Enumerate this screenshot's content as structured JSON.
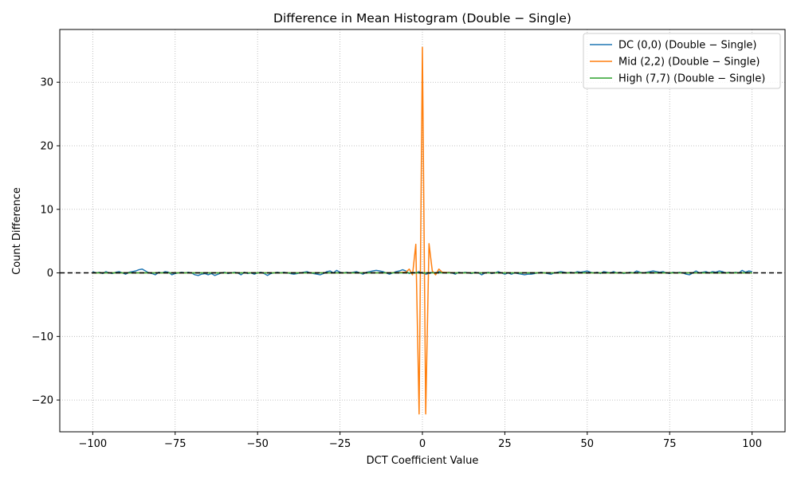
{
  "chart_data": {
    "type": "line",
    "title": "Difference in Mean Histogram (Double − Single)",
    "xlabel": "DCT Coefficient Value",
    "ylabel": "Count Difference",
    "xlim": [
      -110,
      110
    ],
    "ylim": [
      -25,
      38.3
    ],
    "xticks": [
      -100,
      -75,
      -50,
      -25,
      0,
      25,
      50,
      75,
      100
    ],
    "xtick_labels": [
      "−100",
      "−75",
      "−50",
      "−25",
      "0",
      "25",
      "50",
      "75",
      "100"
    ],
    "yticks": [
      -20,
      -10,
      0,
      10,
      20,
      30
    ],
    "ytick_labels": [
      "−20",
      "−10",
      "0",
      "10",
      "20",
      "30"
    ],
    "grid": true,
    "legend_position": "top-right",
    "reference_line": {
      "y": 0,
      "style": "dashed",
      "color": "#000000"
    },
    "series": [
      {
        "name": "DC (0,0) (Double − Single)",
        "color": "#1f77b4",
        "points": [
          [
            -100,
            0.2
          ],
          [
            -99,
            0.0
          ],
          [
            -98,
            0.1
          ],
          [
            -97,
            -0.1
          ],
          [
            -96,
            0.2
          ],
          [
            -95,
            0.0
          ],
          [
            -94,
            -0.1
          ],
          [
            -93,
            0.1
          ],
          [
            -92,
            0.2
          ],
          [
            -91,
            0.0
          ],
          [
            -90,
            -0.2
          ],
          [
            -89,
            0.1
          ],
          [
            -88,
            0.2
          ],
          [
            -87,
            0.3
          ],
          [
            -86,
            0.5
          ],
          [
            -85,
            0.6
          ],
          [
            -84,
            0.3
          ],
          [
            -83,
            0.0
          ],
          [
            -82,
            -0.1
          ],
          [
            -81,
            -0.3
          ],
          [
            -80,
            0.1
          ],
          [
            -79,
            0.0
          ],
          [
            -78,
            0.2
          ],
          [
            -77,
            0.1
          ],
          [
            -76,
            -0.3
          ],
          [
            -75,
            -0.1
          ],
          [
            -74,
            0.0
          ],
          [
            -73,
            0.1
          ],
          [
            -72,
            0.0
          ],
          [
            -71,
            0.1
          ],
          [
            -70,
            0.0
          ],
          [
            -69,
            -0.3
          ],
          [
            -68,
            -0.4
          ],
          [
            -67,
            -0.2
          ],
          [
            -66,
            -0.1
          ],
          [
            -65,
            -0.3
          ],
          [
            -64,
            -0.1
          ],
          [
            -63,
            -0.4
          ],
          [
            -62,
            -0.2
          ],
          [
            -61,
            0.0
          ],
          [
            -60,
            0.1
          ],
          [
            -59,
            -0.1
          ],
          [
            -58,
            0.0
          ],
          [
            -57,
            0.1
          ],
          [
            -56,
            0.0
          ],
          [
            -55,
            -0.3
          ],
          [
            -54,
            0.1
          ],
          [
            -53,
            -0.1
          ],
          [
            -52,
            0.0
          ],
          [
            -51,
            -0.2
          ],
          [
            -50,
            0.0
          ],
          [
            -49,
            0.1
          ],
          [
            -48,
            -0.1
          ],
          [
            -47,
            -0.4
          ],
          [
            -46,
            -0.1
          ],
          [
            -45,
            0.0
          ],
          [
            -44,
            0.1
          ],
          [
            -43,
            0.0
          ],
          [
            -42,
            0.1
          ],
          [
            -41,
            0.0
          ],
          [
            -40,
            -0.1
          ],
          [
            -39,
            -0.2
          ],
          [
            -38,
            -0.1
          ],
          [
            -37,
            0.0
          ],
          [
            -36,
            0.1
          ],
          [
            -35,
            0.2
          ],
          [
            -34,
            0.0
          ],
          [
            -33,
            -0.1
          ],
          [
            -32,
            -0.2
          ],
          [
            -31,
            -0.3
          ],
          [
            -30,
            -0.1
          ],
          [
            -29,
            0.2
          ],
          [
            -28,
            0.3
          ],
          [
            -27,
            0.0
          ],
          [
            -26,
            0.4
          ],
          [
            -25,
            0.1
          ],
          [
            -24,
            0.0
          ],
          [
            -23,
            0.1
          ],
          [
            -22,
            0.0
          ],
          [
            -21,
            0.1
          ],
          [
            -20,
            0.2
          ],
          [
            -19,
            0.0
          ],
          [
            -18,
            -0.2
          ],
          [
            -17,
            0.1
          ],
          [
            -16,
            0.2
          ],
          [
            -15,
            0.3
          ],
          [
            -14,
            0.4
          ],
          [
            -13,
            0.3
          ],
          [
            -12,
            0.2
          ],
          [
            -11,
            0.0
          ],
          [
            -10,
            -0.2
          ],
          [
            -9,
            0.0
          ],
          [
            -8,
            0.2
          ],
          [
            -7,
            0.3
          ],
          [
            -6,
            0.5
          ],
          [
            -5,
            0.3
          ],
          [
            -4,
            -0.1
          ],
          [
            -3,
            0.1
          ],
          [
            -2,
            0.0
          ],
          [
            -1,
            0.2
          ],
          [
            0,
            0.0
          ],
          [
            1,
            -0.2
          ],
          [
            2,
            -0.1
          ],
          [
            3,
            0.1
          ],
          [
            4,
            0.0
          ],
          [
            5,
            0.2
          ],
          [
            6,
            0.1
          ],
          [
            7,
            0.0
          ],
          [
            8,
            0.1
          ],
          [
            9,
            0.0
          ],
          [
            10,
            -0.2
          ],
          [
            11,
            0.1
          ],
          [
            12,
            0.0
          ],
          [
            13,
            0.1
          ],
          [
            14,
            0.0
          ],
          [
            15,
            -0.1
          ],
          [
            16,
            0.1
          ],
          [
            17,
            0.0
          ],
          [
            18,
            -0.3
          ],
          [
            19,
            0.0
          ],
          [
            20,
            0.1
          ],
          [
            21,
            -0.1
          ],
          [
            22,
            0.0
          ],
          [
            23,
            0.2
          ],
          [
            24,
            0.0
          ],
          [
            25,
            -0.2
          ],
          [
            26,
            0.0
          ],
          [
            27,
            -0.2
          ],
          [
            28,
            0.0
          ],
          [
            29,
            -0.1
          ],
          [
            30,
            -0.2
          ],
          [
            31,
            -0.3
          ],
          [
            32,
            -0.2
          ],
          [
            33,
            -0.2
          ],
          [
            34,
            -0.1
          ],
          [
            35,
            0.0
          ],
          [
            36,
            0.1
          ],
          [
            37,
            0.0
          ],
          [
            38,
            -0.1
          ],
          [
            39,
            -0.2
          ],
          [
            40,
            0.0
          ],
          [
            41,
            0.1
          ],
          [
            42,
            0.2
          ],
          [
            43,
            0.1
          ],
          [
            44,
            0.0
          ],
          [
            45,
            0.1
          ],
          [
            46,
            0.0
          ],
          [
            47,
            0.2
          ],
          [
            48,
            0.1
          ],
          [
            49,
            0.2
          ],
          [
            50,
            0.3
          ],
          [
            51,
            0.1
          ],
          [
            52,
            0.0
          ],
          [
            53,
            0.1
          ],
          [
            54,
            -0.1
          ],
          [
            55,
            0.2
          ],
          [
            56,
            0.1
          ],
          [
            57,
            0.0
          ],
          [
            58,
            0.2
          ],
          [
            59,
            0.0
          ],
          [
            60,
            0.1
          ],
          [
            61,
            -0.1
          ],
          [
            62,
            0.0
          ],
          [
            63,
            0.1
          ],
          [
            64,
            0.0
          ],
          [
            65,
            0.3
          ],
          [
            66,
            0.1
          ],
          [
            67,
            0.0
          ],
          [
            68,
            0.1
          ],
          [
            69,
            0.2
          ],
          [
            70,
            0.3
          ],
          [
            71,
            0.2
          ],
          [
            72,
            0.1
          ],
          [
            73,
            0.2
          ],
          [
            74,
            0.0
          ],
          [
            75,
            -0.1
          ],
          [
            76,
            0.1
          ],
          [
            77,
            0.0
          ],
          [
            78,
            0.1
          ],
          [
            79,
            0.0
          ],
          [
            80,
            -0.2
          ],
          [
            81,
            -0.3
          ],
          [
            82,
            0.0
          ],
          [
            83,
            0.3
          ],
          [
            84,
            0.0
          ],
          [
            85,
            0.1
          ],
          [
            86,
            0.2
          ],
          [
            87,
            0.0
          ],
          [
            88,
            0.2
          ],
          [
            89,
            0.1
          ],
          [
            90,
            0.3
          ],
          [
            91,
            0.2
          ],
          [
            92,
            0.0
          ],
          [
            93,
            0.1
          ],
          [
            94,
            0.0
          ],
          [
            95,
            0.1
          ],
          [
            96,
            0.0
          ],
          [
            97,
            0.4
          ],
          [
            98,
            0.1
          ],
          [
            99,
            0.3
          ],
          [
            100,
            0.2
          ]
        ]
      },
      {
        "name": "Mid (2,2) (Double − Single)",
        "color": "#ff7f0e",
        "points": [
          [
            -100,
            0
          ],
          [
            -10,
            0
          ],
          [
            -5,
            0.1
          ],
          [
            -4,
            0.6
          ],
          [
            -3,
            -0.3
          ],
          [
            -2,
            4.5
          ],
          [
            -1,
            -22.2
          ],
          [
            0,
            35.5
          ],
          [
            1,
            -22.2
          ],
          [
            2,
            4.6
          ],
          [
            3,
            0.3
          ],
          [
            4,
            -0.3
          ],
          [
            5,
            0.6
          ],
          [
            6,
            0.1
          ],
          [
            10,
            0
          ],
          [
            100,
            0
          ]
        ]
      },
      {
        "name": "High (7,7) (Double − Single)",
        "color": "#2ca02c",
        "points": [
          [
            -100,
            0
          ],
          [
            100,
            0
          ]
        ]
      }
    ]
  }
}
